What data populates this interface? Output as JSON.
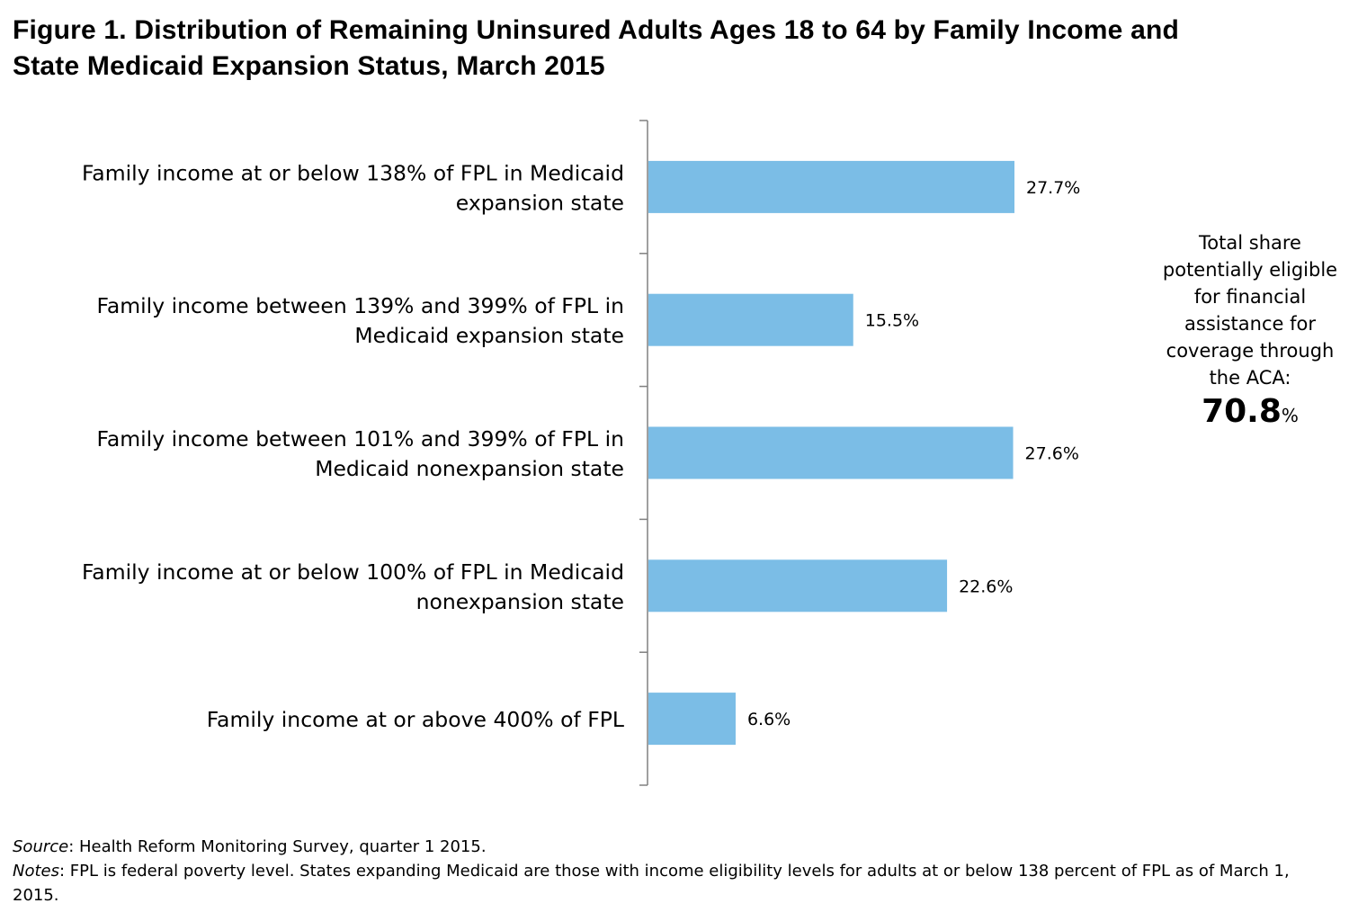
{
  "title": {
    "line1": "Figure 1. Distribution of Remaining Uninsured Adults Ages 18 to 64 by  Family Income and",
    "line2": "State Medicaid Expansion Status, March 2015"
  },
  "colors": {
    "bar": "#7BBDE6",
    "axis": "#808080"
  },
  "chart_data": {
    "type": "bar",
    "orientation": "horizontal",
    "categories": [
      [
        "Family income at or below 138% of FPL in Medicaid",
        "expansion state"
      ],
      [
        "Family income between 139% and 399% of FPL in",
        "Medicaid expansion state"
      ],
      [
        "Family income between 101% and 399% of FPL in",
        "Medicaid nonexpansion state"
      ],
      [
        "Family income at or below 100% of FPL in Medicaid",
        "nonexpansion state"
      ],
      [
        "Family income at or above 400% of FPL"
      ]
    ],
    "values": [
      27.7,
      15.5,
      27.6,
      22.6,
      6.6
    ],
    "value_labels": [
      "27.7%",
      "15.5%",
      "27.6%",
      "22.6%",
      "6.6%"
    ],
    "xlim": [
      0,
      30
    ],
    "grid": false,
    "legend": "none"
  },
  "callout": {
    "lines": [
      "Total share",
      "potentially eligible",
      "for financial",
      "assistance for",
      "coverage through",
      "the ACA:"
    ],
    "value": "70.8",
    "unit": "%"
  },
  "footer": {
    "source_label": "Source",
    "source_text": ": Health Reform Monitoring Survey, quarter 1 2015.",
    "notes_label": "Notes",
    "notes_text": ": FPL is federal poverty level. States expanding Medicaid are those with income eligibility levels for adults at or below 138 percent of FPL as of  March 1, 2015."
  }
}
